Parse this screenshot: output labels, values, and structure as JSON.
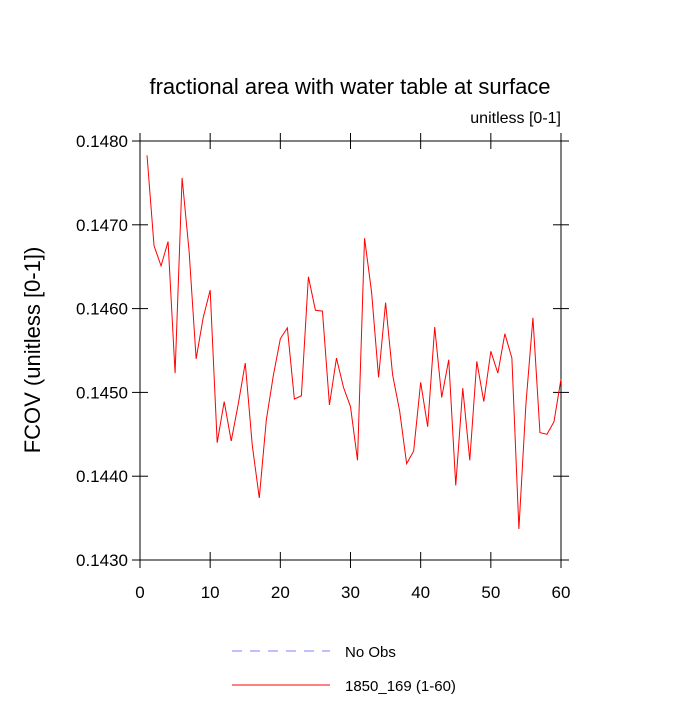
{
  "chart_data": {
    "type": "line",
    "title": "fractional area with water table at surface",
    "subtitle": "unitless [0-1]",
    "y_label": "FCOV  (unitless [0-1])",
    "x": [
      1,
      2,
      3,
      4,
      5,
      6,
      7,
      8,
      9,
      10,
      11,
      12,
      13,
      14,
      15,
      16,
      17,
      18,
      19,
      20,
      21,
      22,
      23,
      24,
      25,
      26,
      27,
      28,
      29,
      30,
      31,
      32,
      33,
      34,
      35,
      36,
      37,
      38,
      39,
      40,
      41,
      42,
      43,
      44,
      45,
      46,
      47,
      48,
      49,
      50,
      51,
      52,
      53,
      54,
      55,
      56,
      57,
      58,
      59,
      60
    ],
    "series": [
      {
        "name": "No Obs",
        "color": "#8080ff",
        "dashed": true,
        "values": [
          null,
          null,
          null,
          null,
          null,
          null,
          null,
          null,
          null,
          null,
          null,
          null,
          null,
          null,
          null,
          null,
          null,
          null,
          null,
          null,
          null,
          null,
          null,
          null,
          null,
          null,
          null,
          null,
          null,
          null,
          null,
          null,
          null,
          null,
          null,
          null,
          null,
          null,
          null,
          null,
          null,
          null,
          null,
          null,
          null,
          null,
          null,
          null,
          null,
          null,
          null,
          null,
          null,
          null,
          null,
          null,
          null,
          null,
          null,
          null
        ]
      },
      {
        "name": "1850_169 (1-60)",
        "color": "#ff0000",
        "dashed": false,
        "values": [
          0.14783,
          0.14675,
          0.14651,
          0.1468,
          0.14523,
          0.14756,
          0.14668,
          0.1454,
          0.14589,
          0.14622,
          0.1444,
          0.14489,
          0.14442,
          0.14486,
          0.14535,
          0.14437,
          0.14374,
          0.14467,
          0.1452,
          0.14564,
          0.14577,
          0.14492,
          0.14496,
          0.14638,
          0.14598,
          0.14597,
          0.14485,
          0.14541,
          0.14506,
          0.14483,
          0.14419,
          0.14684,
          0.1462,
          0.14518,
          0.14607,
          0.14521,
          0.14478,
          0.14415,
          0.1443,
          0.14512,
          0.14459,
          0.14578,
          0.14494,
          0.14539,
          0.14389,
          0.14505,
          0.14419,
          0.14537,
          0.14489,
          0.14549,
          0.14523,
          0.1457,
          0.14541,
          0.14337,
          0.14486,
          0.14589,
          0.14452,
          0.1445,
          0.14465,
          0.14516
        ]
      }
    ],
    "xlim": [
      0,
      60
    ],
    "xticks": [
      0,
      10,
      20,
      30,
      40,
      50,
      60
    ],
    "ylim": [
      0.143,
      0.148
    ],
    "yticks": [
      {
        "value": 0.143,
        "label": "0.1430"
      },
      {
        "value": 0.144,
        "label": "0.1440"
      },
      {
        "value": 0.145,
        "label": "0.1450"
      },
      {
        "value": 0.146,
        "label": "0.1460"
      },
      {
        "value": 0.147,
        "label": "0.1470"
      },
      {
        "value": 0.148,
        "label": "0.1480"
      }
    ],
    "grid": false
  }
}
